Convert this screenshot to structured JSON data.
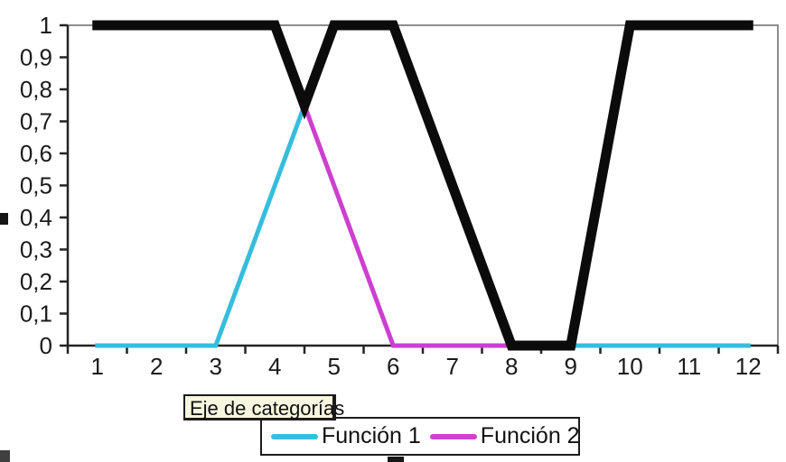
{
  "chart_data": {
    "type": "line",
    "title": "",
    "x_categories": [
      "1",
      "2",
      "3",
      "4",
      "5",
      "6",
      "7",
      "8",
      "9",
      "10",
      "11",
      "12"
    ],
    "y_tick_labels": [
      "1",
      "0,9",
      "0,8",
      "0,7",
      "0,6",
      "0,5",
      "0,4",
      "0,3",
      "0,2",
      "0,1",
      "0"
    ],
    "ylim": [
      0,
      1
    ],
    "xlim": [
      1,
      12
    ],
    "grid": "off",
    "legend_position": "bottom",
    "series": [
      {
        "name": "Función 1",
        "color": "#35BEDC",
        "stroke_width": 5,
        "segments": [
          [
            [
              1,
              0
            ],
            [
              3,
              0
            ],
            [
              4.5,
              0.75
            ]
          ],
          [
            [
              9,
              0
            ],
            [
              12,
              0
            ]
          ]
        ]
      },
      {
        "name": "Función 2",
        "color": "#CC3FCF",
        "stroke_width": 5,
        "segments": [
          [
            [
              4.5,
              0.75
            ],
            [
              6,
              0
            ],
            [
              8.1,
              0
            ]
          ]
        ]
      },
      {
        "name": "",
        "color": "#0B0B0B",
        "stroke_width": 11,
        "segments": [
          [
            [
              1,
              1
            ],
            [
              4,
              1
            ],
            [
              4.5,
              0.75
            ],
            [
              5,
              1
            ],
            [
              6,
              1
            ],
            [
              8,
              0
            ],
            [
              9,
              0
            ],
            [
              10,
              1
            ],
            [
              12,
              1
            ]
          ]
        ]
      }
    ],
    "legend": {
      "entries": [
        {
          "label": "Función 1",
          "color": "#35BEDC"
        },
        {
          "label": "Función 2",
          "color": "#CE42CE"
        }
      ]
    },
    "tooltip_text": "Eje de categorías"
  },
  "colors": {
    "axis": "#242424",
    "plot_border": "#8E8E8E",
    "tooltip_bg": "#F7F7DF",
    "handle": "#151515"
  }
}
